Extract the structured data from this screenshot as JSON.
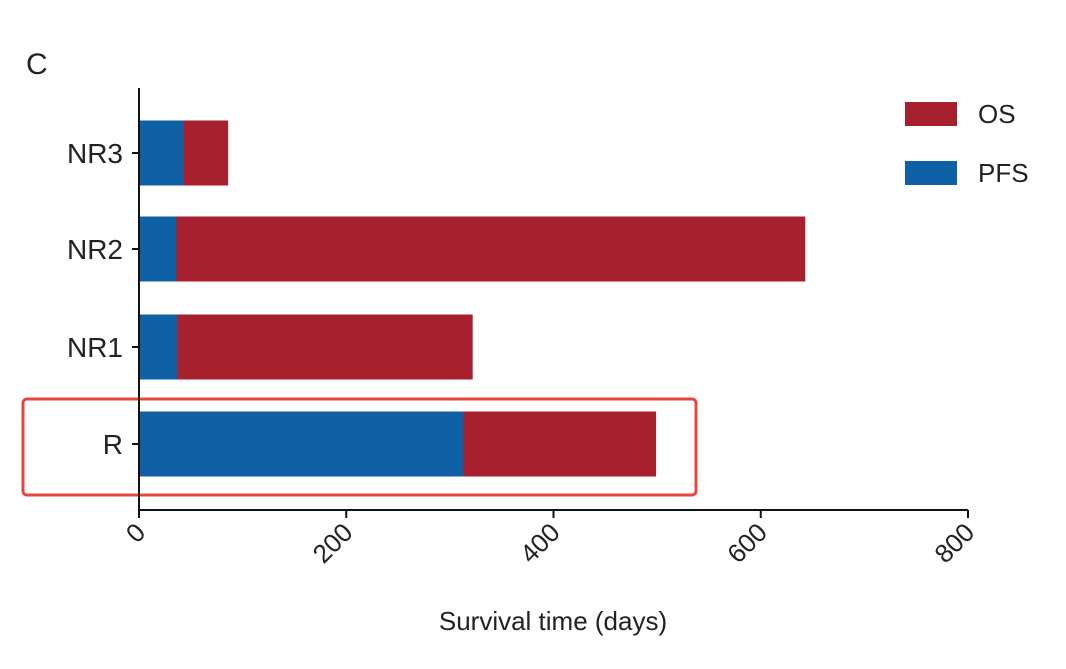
{
  "panel_label": "C",
  "chart_data": {
    "type": "bar",
    "orientation": "horizontal",
    "stacked": true,
    "categories": [
      "NR3",
      "NR2",
      "NR1",
      "R"
    ],
    "series": [
      {
        "name": "PFS",
        "values": [
          43,
          36,
          37,
          313
        ],
        "color": "#1060A6"
      },
      {
        "name": "OS",
        "values": [
          86,
          643,
          322,
          499
        ],
        "color": "#A6202E"
      }
    ],
    "series_mode": "overlay",
    "xlabel": "Survival time (days)",
    "ylabel": "",
    "xlim": [
      0,
      800
    ],
    "xticks": [
      0,
      200,
      400,
      600,
      800
    ],
    "legend": {
      "placement": "top-right",
      "order": [
        "OS",
        "PFS"
      ]
    },
    "grid": false,
    "highlight": {
      "category": "R",
      "color": "#E5473D"
    }
  }
}
